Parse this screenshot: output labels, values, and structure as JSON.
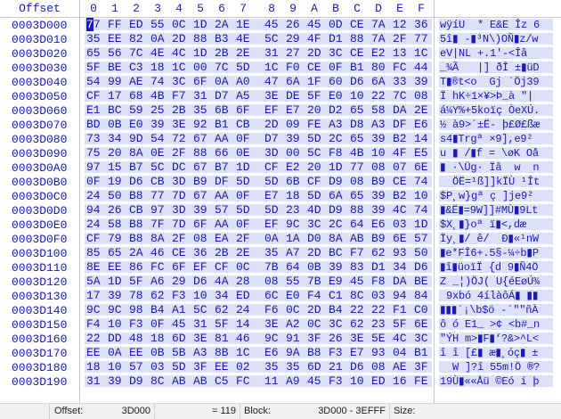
{
  "header": {
    "offset_label": "Offset",
    "columns": [
      "0",
      "1",
      "2",
      "3",
      "4",
      "5",
      "6",
      "7",
      "8",
      "9",
      "A",
      "B",
      "C",
      "D",
      "E",
      "F"
    ]
  },
  "colors": {
    "text": "#1a1ab8",
    "row_bg": "#dde0fa"
  },
  "cursor": {
    "row": 0,
    "col": 0
  },
  "rows": [
    {
      "addr": "0003D000",
      "hex": [
        "77",
        "FF",
        "ED",
        "55",
        "0C",
        "1D",
        "2A",
        "1E",
        "45",
        "26",
        "45",
        "0D",
        "CE",
        "7A",
        "12",
        "36"
      ],
      "ascii": "wÿíU  * E&E Îz 6"
    },
    {
      "addr": "0003D010",
      "hex": [
        "35",
        "EE",
        "82",
        "0A",
        "2D",
        "88",
        "B3",
        "4E",
        "5C",
        "29",
        "4F",
        "D1",
        "88",
        "7A",
        "2F",
        "77"
      ],
      "ascii": "5î▮ -▮³N\\)OÑ▮z/w"
    },
    {
      "addr": "0003D020",
      "hex": [
        "65",
        "56",
        "7C",
        "4E",
        "4C",
        "1D",
        "2B",
        "2E",
        "31",
        "27",
        "2D",
        "3C",
        "CE",
        "E2",
        "13",
        "1C"
      ],
      "ascii": "eV|NL +.1'-<Îâ  "
    },
    {
      "addr": "0003D030",
      "hex": [
        "5F",
        "BE",
        "C3",
        "18",
        "1C",
        "00",
        "7C",
        "5D",
        "1C",
        "F0",
        "CE",
        "0F",
        "B1",
        "80",
        "FC",
        "44"
      ],
      "ascii": "_¾Ã   |] ðÎ ±▮üD"
    },
    {
      "addr": "0003D040",
      "hex": [
        "54",
        "99",
        "AE",
        "74",
        "3C",
        "6F",
        "0A",
        "A0",
        "47",
        "6A",
        "1F",
        "60",
        "D6",
        "6A",
        "33",
        "39"
      ],
      "ascii": "T▮®t<o  Gj `Öj39"
    },
    {
      "addr": "0003D050",
      "hex": [
        "CF",
        "17",
        "68",
        "4B",
        "F7",
        "31",
        "D7",
        "A5",
        "3E",
        "DE",
        "5F",
        "E0",
        "10",
        "22",
        "7C",
        "08"
      ],
      "ascii": "Ï hK÷1×¥>Þ_à \"| "
    },
    {
      "addr": "0003D060",
      "hex": [
        "E1",
        "BC",
        "59",
        "25",
        "2B",
        "35",
        "6B",
        "6F",
        "EF",
        "E7",
        "20",
        "D2",
        "65",
        "58",
        "DA",
        "2E"
      ],
      "ascii": "á¼Y%+5koïç ÒeXÚ."
    },
    {
      "addr": "0003D070",
      "hex": [
        "BD",
        "0B",
        "E0",
        "39",
        "3E",
        "92",
        "B1",
        "CB",
        "2D",
        "09",
        "FE",
        "A3",
        "D8",
        "A3",
        "DF",
        "E6"
      ],
      "ascii": "½ à9>´±Ë- þ£Ø£ßæ"
    },
    {
      "addr": "0003D080",
      "hex": [
        "73",
        "34",
        "9D",
        "54",
        "72",
        "67",
        "AA",
        "0F",
        "D7",
        "39",
        "5D",
        "2C",
        "65",
        "39",
        "B2",
        "14"
      ],
      "ascii": "s4▮Trgª ×9],e9² "
    },
    {
      "addr": "0003D090",
      "hex": [
        "75",
        "20",
        "8A",
        "0E",
        "2F",
        "88",
        "66",
        "0E",
        "3D",
        "00",
        "5C",
        "F8",
        "4B",
        "10",
        "4F",
        "E5"
      ],
      "ascii": "u ▮ /▮f = \\øK Oå"
    },
    {
      "addr": "0003D0A0",
      "hex": [
        "97",
        "15",
        "B7",
        "5C",
        "DC",
        "67",
        "B7",
        "1D",
        "CF",
        "E2",
        "20",
        "1D",
        "77",
        "08",
        "07",
        "6E"
      ],
      "ascii": "▮ ·\\Üg· Ïâ  w  n"
    },
    {
      "addr": "0003D0B0",
      "hex": [
        "0F",
        "19",
        "D6",
        "CB",
        "3D",
        "B9",
        "DF",
        "5D",
        "5D",
        "6B",
        "CF",
        "D9",
        "08",
        "B9",
        "CE",
        "74"
      ],
      "ascii": "  ÖË=¹ß]]kÏÙ ¹Ît"
    },
    {
      "addr": "0003D0C0",
      "hex": [
        "24",
        "50",
        "B8",
        "77",
        "7D",
        "67",
        "AA",
        "0F",
        "E7",
        "18",
        "5D",
        "6A",
        "65",
        "39",
        "B2",
        "10"
      ],
      "ascii": "$P¸w}gª ç ]je9² "
    },
    {
      "addr": "0003D0D0",
      "hex": [
        "94",
        "26",
        "CB",
        "97",
        "3D",
        "39",
        "57",
        "5D",
        "5D",
        "23",
        "4D",
        "D9",
        "88",
        "39",
        "4C",
        "74"
      ],
      "ascii": "▮&Ë▮=9W]]#MÙ▮9Lt"
    },
    {
      "addr": "0003D0E0",
      "hex": [
        "24",
        "58",
        "B8",
        "7F",
        "7D",
        "6F",
        "AA",
        "0F",
        "EF",
        "9C",
        "3C",
        "2C",
        "64",
        "E6",
        "03",
        "1D"
      ],
      "ascii": "$X¸▮}oª ï▮<,dæ  "
    },
    {
      "addr": "0003D0F0",
      "hex": [
        "CF",
        "79",
        "B8",
        "8A",
        "2F",
        "08",
        "EA",
        "2F",
        "0A",
        "1A",
        "D0",
        "8A",
        "AB",
        "B9",
        "6E",
        "57"
      ],
      "ascii": "Ïy¸▮/ ê/  Ð▮«¹nW"
    },
    {
      "addr": "0003D100",
      "hex": [
        "85",
        "65",
        "2A",
        "46",
        "CE",
        "36",
        "2B",
        "2E",
        "35",
        "A7",
        "2D",
        "BC",
        "F7",
        "62",
        "93",
        "50"
      ],
      "ascii": "▮e*FÎ6+.5§-¼÷b▮P"
    },
    {
      "addr": "0003D110",
      "hex": [
        "8E",
        "EE",
        "86",
        "FC",
        "6F",
        "EF",
        "CF",
        "0C",
        "7B",
        "64",
        "0B",
        "39",
        "83",
        "D1",
        "34",
        "D6"
      ],
      "ascii": "▮î▮üoïÏ {d 9▮Ñ4Ö"
    },
    {
      "addr": "0003D120",
      "hex": [
        "5A",
        "1D",
        "5F",
        "A6",
        "29",
        "D6",
        "4A",
        "28",
        "08",
        "55",
        "7B",
        "E9",
        "45",
        "F8",
        "DA",
        "BE"
      ],
      "ascii": "Z _¦)ÖJ( U{éEøÚ¾"
    },
    {
      "addr": "0003D130",
      "hex": [
        "17",
        "39",
        "78",
        "62",
        "F3",
        "10",
        "34",
        "ED",
        "6C",
        "E0",
        "F4",
        "C1",
        "8C",
        "03",
        "94",
        "84"
      ],
      "ascii": " 9xbó 4ílàôÁ▮ ▮▮"
    },
    {
      "addr": "0003D140",
      "hex": [
        "9C",
        "9C",
        "98",
        "B4",
        "A1",
        "5C",
        "62",
        "24",
        "F6",
        "0C",
        "2D",
        "B4",
        "22",
        "22",
        "F1",
        "C0"
      ],
      "ascii": "▮▮▮´¡\\b$ö -´\"\"ñÀ"
    },
    {
      "addr": "0003D150",
      "hex": [
        "F4",
        "10",
        "F3",
        "0F",
        "45",
        "31",
        "5F",
        "14",
        "3E",
        "A2",
        "0C",
        "3C",
        "62",
        "23",
        "5F",
        "6E"
      ],
      "ascii": "ô ó E1_ >¢ <b#_n"
    },
    {
      "addr": "0003D160",
      "hex": [
        "22",
        "DD",
        "48",
        "18",
        "6D",
        "3E",
        "81",
        "46",
        "9C",
        "91",
        "3F",
        "26",
        "3E",
        "5E",
        "4C",
        "3C"
      ],
      "ascii": "\"ÝH m>▮F▮‘?&>^L<"
    },
    {
      "addr": "0003D170",
      "hex": [
        "EE",
        "0A",
        "EE",
        "0B",
        "5B",
        "A3",
        "8B",
        "1C",
        "E6",
        "9A",
        "B8",
        "F3",
        "E7",
        "93",
        "04",
        "B1"
      ],
      "ascii": "î î [£▮ æ▮¸óç▮ ±"
    },
    {
      "addr": "0003D180",
      "hex": [
        "18",
        "10",
        "57",
        "03",
        "5D",
        "3F",
        "EE",
        "02",
        "35",
        "35",
        "6D",
        "21",
        "D6",
        "08",
        "AE",
        "3F"
      ],
      "ascii": "  W ]?î 55m!Ö ®?"
    },
    {
      "addr": "0003D190",
      "hex": [
        "31",
        "39",
        "D9",
        "8C",
        "AB",
        "AB",
        "C5",
        "FC",
        "11",
        "A9",
        "45",
        "F3",
        "10",
        "ED",
        "16",
        "FE"
      ],
      "ascii": "19Ù▮««Åü ©Eó í þ"
    }
  ],
  "status": {
    "offset_label": "Offset:",
    "offset_value": "3D000",
    "value": "= 119",
    "block_label": "Block:",
    "block_value": "3D000 - 3EFFF",
    "size_label": "Size:"
  }
}
